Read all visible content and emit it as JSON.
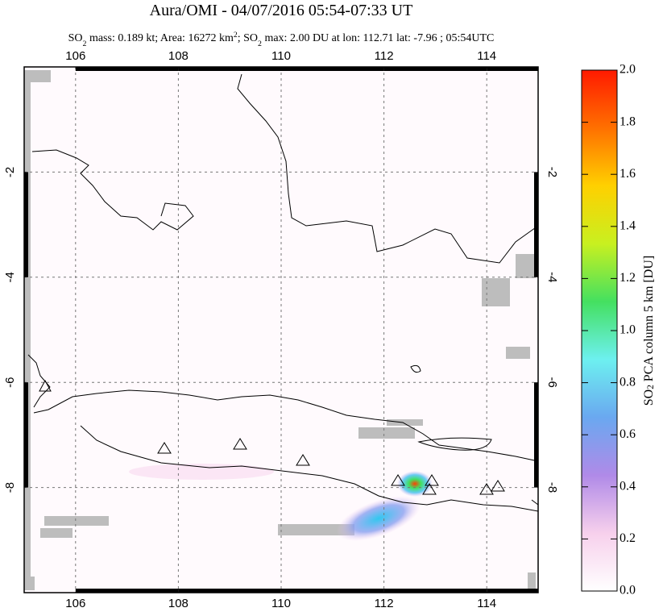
{
  "chart_data": {
    "type": "map",
    "title": "Aura/OMI - 04/07/2016 05:54-07:33 UT",
    "subtitle": [
      "SO",
      "2",
      " mass: 0.189 kt; Area: 16272 km",
      "2",
      "; SO",
      "2",
      " max: 2.00 DU at lon: 112.71 lat: -7.96 ; 05:54UTC"
    ],
    "xlim": [
      105,
      115
    ],
    "ylim": [
      -10,
      0
    ],
    "xticks": [
      106,
      108,
      110,
      112,
      114
    ],
    "yticks": [
      -2,
      -4,
      -6,
      -8
    ],
    "grid": true,
    "colorbar": {
      "label": [
        "SO",
        "2",
        " PCA column 5 km [DU]"
      ],
      "lim": [
        0,
        2
      ],
      "ticks": [
        {
          "value": 0,
          "label": "0.0"
        },
        0.2,
        0.4,
        0.6,
        0.8,
        {
          "value": 1,
          "label": "1.0"
        },
        1.2,
        1.4,
        1.6,
        1.8,
        {
          "value": 2,
          "label": "2.0"
        }
      ],
      "colors": [
        "#ffffff",
        "#f7d0ec",
        "#b08ae8",
        "#6aa8f0",
        "#6df0f0",
        "#44e060",
        "#c8f020",
        "#ffd000",
        "#ff7000",
        "#ff1a00"
      ]
    }
  }
}
